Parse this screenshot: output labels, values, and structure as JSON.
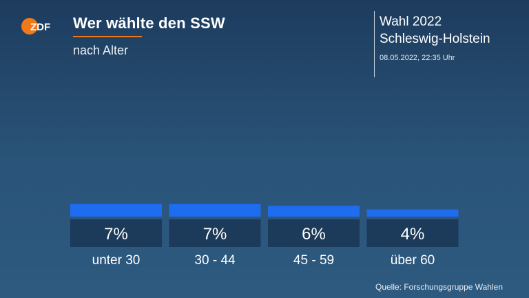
{
  "header": {
    "logo_text": "ZDF",
    "title": "Wer wählte den SSW",
    "subtitle": "nach Alter",
    "election_line1": "Wahl 2022",
    "election_line2": "Schleswig-Holstein",
    "timestamp": "08.05.2022, 22:35 Uhr"
  },
  "footer": {
    "source": "Quelle: Forschungsgruppe Wahlen"
  },
  "colors": {
    "bar": "#1e6cf0",
    "label_box": "#1c3a5a",
    "accent": "#f07a1a",
    "logo": "#f07a1a"
  },
  "chart_data": {
    "type": "bar",
    "categories": [
      "unter 30",
      "30 - 44",
      "45 - 59",
      "über 60"
    ],
    "values": [
      7,
      7,
      6,
      4
    ],
    "value_labels": [
      "7%",
      "7%",
      "6%",
      "4%"
    ],
    "title": "Wer wählte den SSW",
    "subtitle": "nach Alter",
    "unit": "%",
    "grid": false,
    "legend": "none"
  }
}
